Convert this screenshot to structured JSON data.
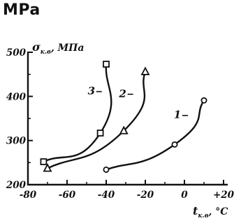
{
  "page": {
    "corner_unit": "MPa"
  },
  "chart_data": {
    "type": "line",
    "title": "",
    "xlabel": {
      "main": "t",
      "sub": "к.в",
      "unit": ", °C"
    },
    "ylabel": {
      "main": "σ",
      "sub": "к.в",
      "unit": ", МПа"
    },
    "xlim": [
      -80,
      20
    ],
    "ylim": [
      200,
      500
    ],
    "x_ticks": [
      {
        "value": -80,
        "label": "-80"
      },
      {
        "value": -60,
        "label": "-60"
      },
      {
        "value": -40,
        "label": "-40"
      },
      {
        "value": -20,
        "label": "-20"
      },
      {
        "value": 0,
        "label": "0"
      },
      {
        "value": 20,
        "label": "+20"
      }
    ],
    "y_ticks": [
      {
        "value": 200,
        "label": "200"
      },
      {
        "value": 300,
        "label": "300"
      },
      {
        "value": 400,
        "label": "400"
      },
      {
        "value": 500,
        "label": "500"
      }
    ],
    "grid": false,
    "series": [
      {
        "name": "1",
        "marker": "circle",
        "points": [
          [
            -40,
            234
          ],
          [
            -5,
            291
          ],
          [
            10,
            391
          ]
        ]
      },
      {
        "name": "2",
        "marker": "triangle",
        "points": [
          [
            -70,
            237
          ],
          [
            -31,
            322
          ],
          [
            -20,
            456
          ]
        ]
      },
      {
        "name": "3",
        "marker": "square",
        "points": [
          [
            -72,
            252
          ],
          [
            -43,
            317
          ],
          [
            -40,
            473
          ]
        ]
      }
    ]
  }
}
